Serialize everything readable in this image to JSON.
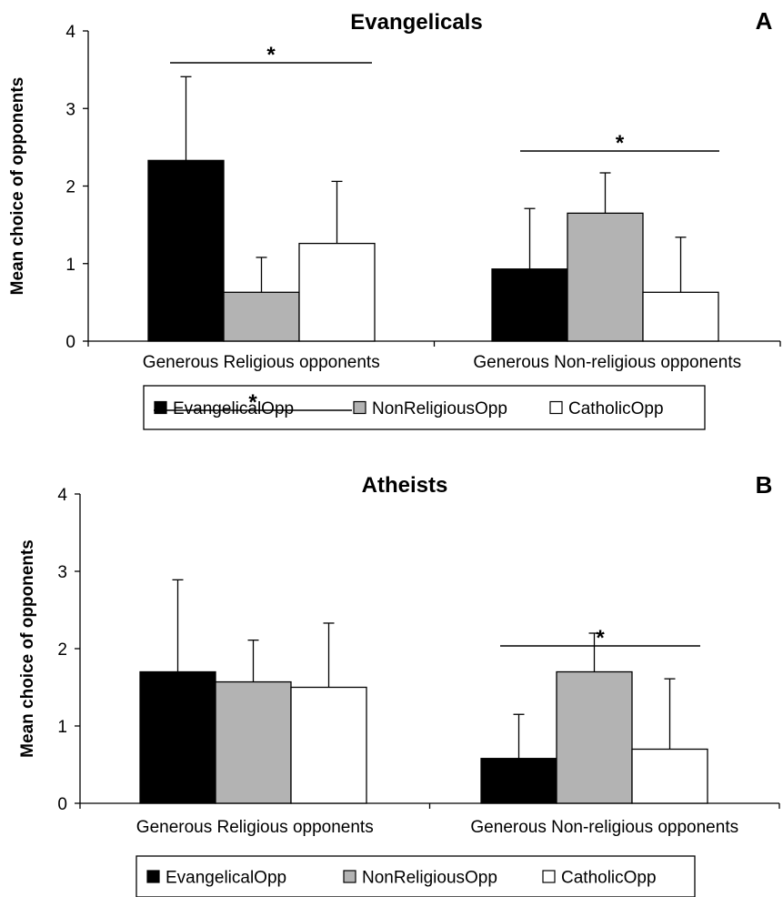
{
  "chart_data": [
    {
      "type": "bar",
      "panel_label": "A",
      "title": "Evangelicals",
      "ylabel": "Mean choice of opponents",
      "ylim": [
        0,
        4
      ],
      "yticks": [
        "0",
        "1",
        "2",
        "3",
        "4"
      ],
      "categories": [
        "Generous Religious opponents",
        "Generous Non-religious opponents"
      ],
      "series": [
        {
          "name": "EvangelicalOpp",
          "color": "#000000",
          "values": [
            2.33,
            0.93
          ],
          "errors": [
            1.08,
            0.78
          ]
        },
        {
          "name": "NonReligiousOpp",
          "color": "#b3b3b3",
          "values": [
            0.63,
            1.65
          ],
          "errors": [
            0.45,
            0.52
          ]
        },
        {
          "name": "CatholicOpp",
          "color": "#ffffff",
          "values": [
            1.26,
            0.63
          ],
          "errors": [
            0.8,
            0.71
          ]
        }
      ],
      "significance": [
        "*",
        "*"
      ],
      "legend_position": "bottom"
    },
    {
      "type": "bar",
      "panel_label": "B",
      "title": "Atheists",
      "ylabel": "Mean choice of opponents",
      "ylim": [
        0,
        4
      ],
      "yticks": [
        "0",
        "1",
        "2",
        "3",
        "4"
      ],
      "categories": [
        "Generous Religious opponents",
        "Generous Non-religious opponents"
      ],
      "series": [
        {
          "name": "EvangelicalOpp",
          "color": "#000000",
          "values": [
            1.7,
            0.58
          ],
          "errors": [
            1.19,
            0.57
          ]
        },
        {
          "name": "NonReligiousOpp",
          "color": "#b3b3b3",
          "values": [
            1.57,
            1.7
          ],
          "errors": [
            0.54,
            0.5
          ]
        },
        {
          "name": "CatholicOpp",
          "color": "#ffffff",
          "values": [
            1.5,
            0.7
          ],
          "errors": [
            0.83,
            0.91
          ]
        }
      ],
      "significance": [
        "*",
        "*"
      ],
      "legend_position": "bottom"
    }
  ]
}
